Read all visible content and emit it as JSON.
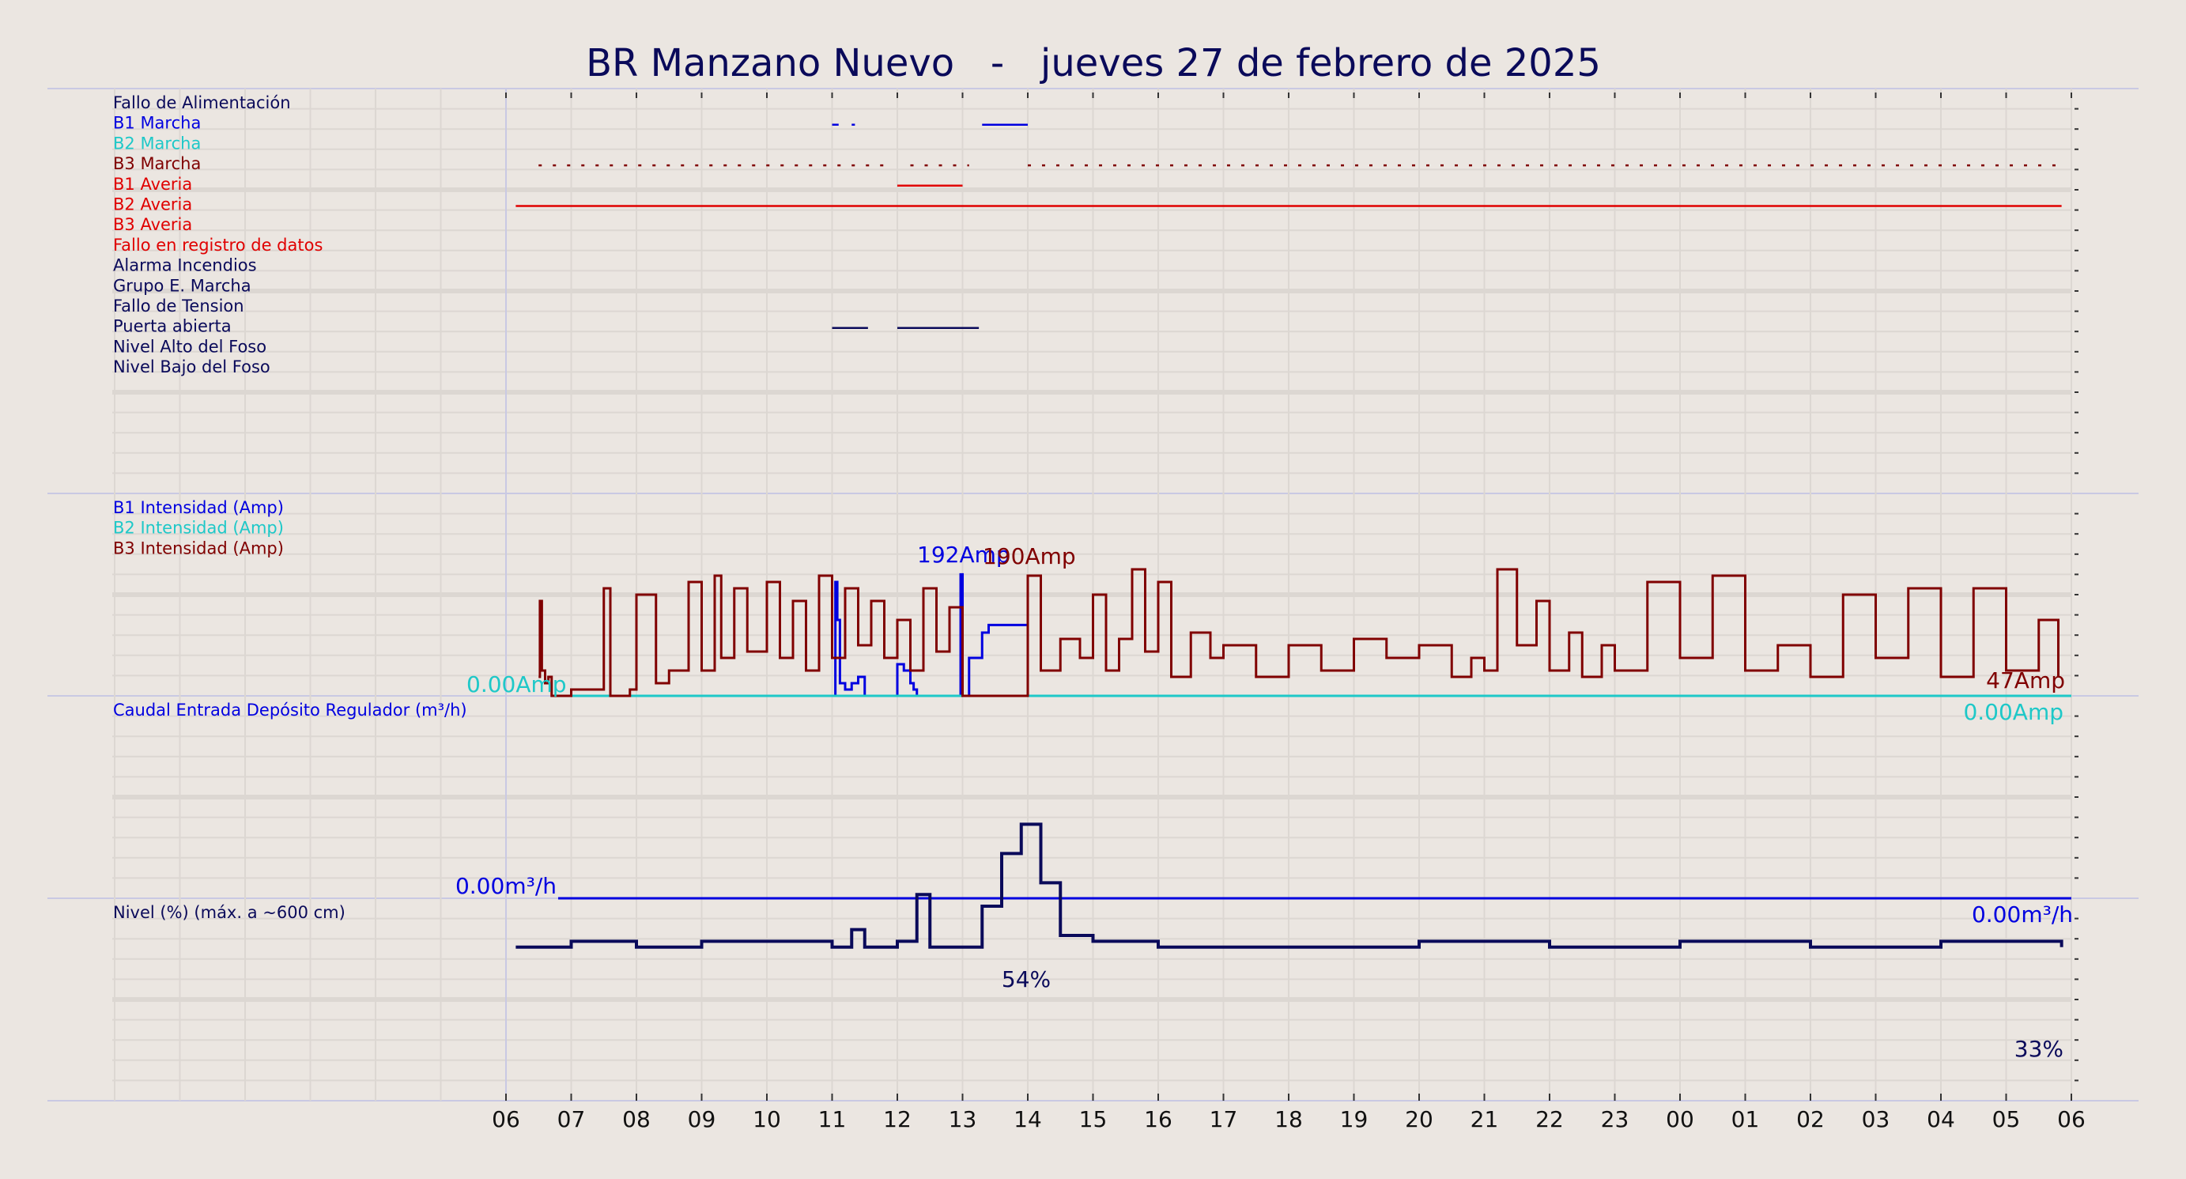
{
  "title": "BR Manzano Nuevo   -   jueves 27 de febrero de 2025",
  "colors": {
    "background": "#ebe6e1",
    "grid": "#dcd7d2",
    "separator": "#c9c9e3",
    "navy": "#0a0a5a",
    "blue": "#0000e0",
    "cyan": "#1ec8c8",
    "darkred": "#800000",
    "red": "#e00000"
  },
  "x_axis": {
    "tick_labels": [
      "06",
      "07",
      "08",
      "09",
      "10",
      "11",
      "12",
      "13",
      "14",
      "15",
      "16",
      "17",
      "18",
      "19",
      "20",
      "21",
      "22",
      "23",
      "00",
      "01",
      "02",
      "03",
      "04",
      "05",
      "06"
    ]
  },
  "chart_data": [
    {
      "type": "timeline",
      "panel": "signals",
      "x_range_hours": [
        0,
        24
      ],
      "series": [
        {
          "name": "Fallo de Alimentación",
          "color": "navy",
          "intervals": []
        },
        {
          "name": "B1 Marcha",
          "color": "blue",
          "intervals": [
            [
              5.0,
              5.1
            ],
            [
              5.3,
              5.35
            ],
            [
              7.3,
              8.0
            ]
          ]
        },
        {
          "name": "B2 Marcha",
          "color": "cyan",
          "intervals": []
        },
        {
          "name": "B3 Marcha",
          "color": "darkred",
          "dashed": true,
          "intervals": [
            [
              0.5,
              5.8
            ],
            [
              6.2,
              7.1
            ],
            [
              8.0,
              23.9
            ]
          ]
        },
        {
          "name": "B1 Averia",
          "color": "red",
          "intervals": [
            [
              6.0,
              7.0
            ]
          ]
        },
        {
          "name": "B2 Averia",
          "color": "red",
          "intervals": [
            [
              0.15,
              23.85
            ]
          ]
        },
        {
          "name": "B3 Averia",
          "color": "red",
          "intervals": []
        },
        {
          "name": "Fallo en registro de datos",
          "color": "red",
          "intervals": []
        },
        {
          "name": "Alarma Incendios",
          "color": "navy",
          "intervals": []
        },
        {
          "name": "Grupo E. Marcha",
          "color": "navy",
          "intervals": []
        },
        {
          "name": "Fallo de Tension",
          "color": "navy",
          "intervals": []
        },
        {
          "name": "Puerta abierta",
          "color": "navy",
          "intervals": [
            [
              5.0,
              5.55
            ],
            [
              6.0,
              7.25
            ]
          ]
        },
        {
          "name": "Nivel Alto del Foso",
          "color": "navy",
          "intervals": []
        },
        {
          "name": "Nivel Bajo del Foso",
          "color": "navy",
          "intervals": []
        }
      ]
    },
    {
      "type": "line",
      "panel": "intensidad",
      "ylim": [
        0,
        200
      ],
      "series": [
        {
          "name": "B1 Intensidad (Amp)",
          "color": "blue",
          "x": [
            5.0,
            5.05,
            5.08,
            5.12,
            5.2,
            5.3,
            5.4,
            5.5,
            6.0,
            6.1,
            6.2,
            6.25,
            6.3,
            6.9,
            6.97,
            7.0,
            7.1,
            7.3,
            7.4,
            8.0
          ],
          "y": [
            0,
            180,
            120,
            20,
            10,
            20,
            30,
            0,
            50,
            40,
            20,
            10,
            0,
            0,
            192,
            0,
            60,
            100,
            112,
            115
          ]
        },
        {
          "name": "B2 Intensidad (Amp)",
          "color": "cyan",
          "x": [
            0.9,
            24
          ],
          "y": [
            0,
            0
          ]
        },
        {
          "name": "B3 Intensidad (Amp)",
          "color": "darkred",
          "x": [
            0.5,
            0.52,
            0.55,
            0.6,
            0.65,
            0.7,
            1.0,
            1.3,
            1.5,
            1.6,
            1.9,
            2.0,
            2.3,
            2.5,
            2.8,
            3.0,
            3.2,
            3.3,
            3.5,
            3.7,
            4.0,
            4.2,
            4.4,
            4.6,
            4.8,
            5.0,
            5.2,
            5.4,
            5.6,
            5.8,
            6.0,
            6.2,
            6.4,
            6.6,
            6.8,
            7.0,
            7.2,
            7.5,
            7.9,
            8.0,
            8.2,
            8.5,
            8.8,
            9.0,
            9.2,
            9.4,
            9.6,
            9.8,
            10.0,
            10.2,
            10.5,
            10.8,
            11.0,
            11.5,
            12.0,
            12.5,
            13.0,
            13.5,
            14.0,
            14.5,
            14.8,
            15.0,
            15.2,
            15.5,
            15.8,
            16.0,
            16.3,
            16.5,
            16.8,
            17.0,
            17.5,
            18.0,
            18.5,
            19.0,
            19.5,
            20.0,
            20.5,
            21.0,
            21.5,
            22.0,
            22.5,
            23.0,
            23.5,
            23.8
          ],
          "y": [
            30,
            150,
            40,
            20,
            30,
            0,
            10,
            10,
            170,
            0,
            10,
            160,
            20,
            40,
            180,
            40,
            190,
            60,
            170,
            70,
            180,
            60,
            150,
            40,
            190,
            60,
            170,
            80,
            150,
            60,
            120,
            40,
            170,
            70,
            140,
            0,
            0,
            0,
            0,
            190,
            40,
            90,
            60,
            160,
            40,
            90,
            200,
            70,
            180,
            30,
            100,
            60,
            80,
            30,
            80,
            40,
            90,
            60,
            80,
            30,
            60,
            40,
            200,
            80,
            150,
            40,
            100,
            30,
            80,
            40,
            180,
            60,
            190,
            40,
            80,
            30,
            160,
            60,
            170,
            30,
            170,
            40,
            120,
            30
          ]
        }
      ],
      "annotations": [
        "0.00Amp",
        "192Amp",
        "190Amp",
        "47Amp",
        "0.00Amp"
      ]
    },
    {
      "type": "line",
      "panel": "caudal",
      "series": [
        {
          "name": "Caudal Entrada Depósito Regulador (m³/h)",
          "color": "blue",
          "x": [
            0.8,
            24
          ],
          "y": [
            0,
            0
          ]
        }
      ],
      "annotations": [
        "0.00m³/h",
        "0.00m³/h"
      ]
    },
    {
      "type": "line",
      "panel": "nivel",
      "ylim": [
        0,
        100
      ],
      "series": [
        {
          "name": "Nivel (%) (máx. a ~600 cm)",
          "color": "navy",
          "x": [
            0.15,
            1,
            2,
            3,
            4,
            5,
            5.3,
            5.5,
            6,
            6.3,
            6.5,
            7,
            7.3,
            7.6,
            7.9,
            8.2,
            8.5,
            9,
            10,
            12,
            14,
            16,
            18,
            20,
            22,
            23.85
          ],
          "y": [
            33,
            34,
            33,
            34,
            34,
            33,
            36,
            33,
            34,
            42,
            33,
            33,
            40,
            49,
            54,
            44,
            35,
            34,
            33,
            33,
            34,
            33,
            34,
            33,
            34,
            33
          ]
        }
      ],
      "annotations": [
        "54%",
        "33%"
      ]
    }
  ]
}
